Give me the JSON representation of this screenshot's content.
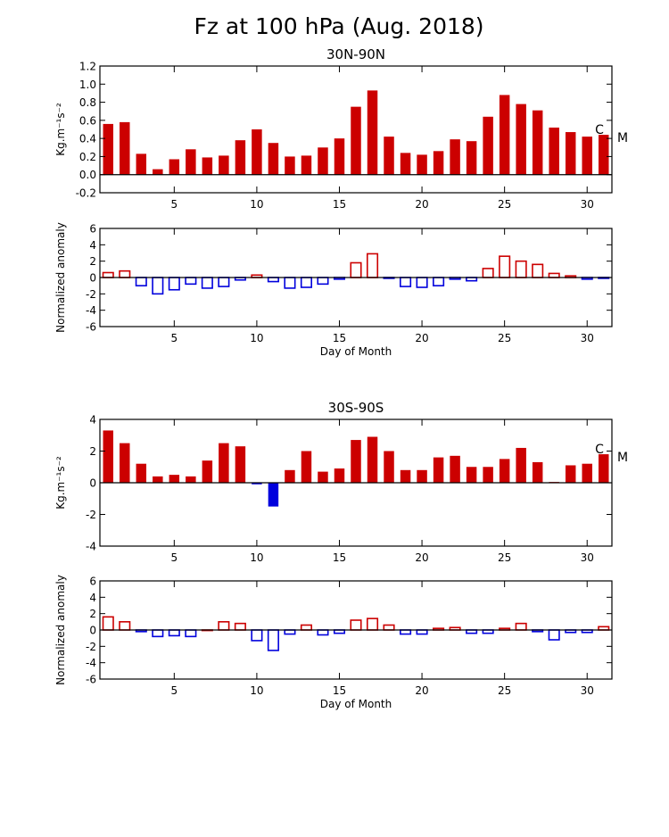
{
  "title": "Fz at 100 hPa (Aug. 2018)",
  "colors": {
    "positive": "#cc0000",
    "negative": "#0000dd",
    "axis": "#000000"
  },
  "chart_data": [
    {
      "type": "bar",
      "title": "30N-90N",
      "ylabel": "Kg.m⁻¹s⁻²",
      "xlabel": "",
      "ylim": [
        -0.2,
        1.2
      ],
      "yticks": [
        "-0.2",
        "0.0",
        "0.2",
        "0.4",
        "0.6",
        "0.8",
        "1.0",
        "1.2"
      ],
      "xticks": [
        "5",
        "10",
        "15",
        "20",
        "25",
        "30"
      ],
      "categories": [
        1,
        2,
        3,
        4,
        5,
        6,
        7,
        8,
        9,
        10,
        11,
        12,
        13,
        14,
        15,
        16,
        17,
        18,
        19,
        20,
        21,
        22,
        23,
        24,
        25,
        26,
        27,
        28,
        29,
        30,
        31
      ],
      "values": [
        0.56,
        0.58,
        0.23,
        0.06,
        0.17,
        0.28,
        0.19,
        0.21,
        0.38,
        0.5,
        0.35,
        0.2,
        0.21,
        0.3,
        0.4,
        0.75,
        0.93,
        0.42,
        0.24,
        0.22,
        0.26,
        0.39,
        0.37,
        0.64,
        0.88,
        0.78,
        0.71,
        0.52,
        0.47,
        0.42,
        0.44
      ],
      "fill": "solid",
      "annotations": [
        "C",
        "M"
      ]
    },
    {
      "type": "bar",
      "title": "",
      "ylabel": "Normalized anomaly",
      "xlabel": "Day of Month",
      "ylim": [
        -6,
        6
      ],
      "yticks": [
        "-6",
        "-4",
        "-2",
        "0",
        "2",
        "4",
        "6"
      ],
      "xticks": [
        "5",
        "10",
        "15",
        "20",
        "25",
        "30"
      ],
      "categories": [
        1,
        2,
        3,
        4,
        5,
        6,
        7,
        8,
        9,
        10,
        11,
        12,
        13,
        14,
        15,
        16,
        17,
        18,
        19,
        20,
        21,
        22,
        23,
        24,
        25,
        26,
        27,
        28,
        29,
        30,
        31
      ],
      "values": [
        0.6,
        0.8,
        -1.0,
        -2.0,
        -1.5,
        -0.8,
        -1.3,
        -1.1,
        -0.3,
        0.3,
        -0.5,
        -1.3,
        -1.2,
        -0.8,
        -0.2,
        1.8,
        2.9,
        -0.1,
        -1.1,
        -1.2,
        -1.0,
        -0.2,
        -0.4,
        1.1,
        2.6,
        2.0,
        1.6,
        0.5,
        0.2,
        -0.2,
        -0.1
      ],
      "fill": "outline"
    },
    {
      "type": "bar",
      "title": "30S-90S",
      "ylabel": "Kg.m⁻¹s⁻²",
      "xlabel": "",
      "ylim": [
        -4,
        4
      ],
      "yticks": [
        "-4",
        "-2",
        "0",
        "2",
        "4"
      ],
      "xticks": [
        "5",
        "10",
        "15",
        "20",
        "25",
        "30"
      ],
      "categories": [
        1,
        2,
        3,
        4,
        5,
        6,
        7,
        8,
        9,
        10,
        11,
        12,
        13,
        14,
        15,
        16,
        17,
        18,
        19,
        20,
        21,
        22,
        23,
        24,
        25,
        26,
        27,
        28,
        29,
        30,
        31
      ],
      "values": [
        3.3,
        2.5,
        1.2,
        0.4,
        0.5,
        0.4,
        1.4,
        2.5,
        2.3,
        -0.1,
        -1.5,
        0.8,
        2.0,
        0.7,
        0.9,
        2.7,
        2.9,
        2.0,
        0.8,
        0.8,
        1.6,
        1.7,
        1.0,
        1.0,
        1.5,
        2.2,
        1.3,
        0.05,
        1.1,
        1.2,
        1.8
      ],
      "fill": "solid",
      "annotations": [
        "C",
        "M"
      ]
    },
    {
      "type": "bar",
      "title": "",
      "ylabel": "Normalized anomaly",
      "xlabel": "Day of Month",
      "ylim": [
        -6,
        6
      ],
      "yticks": [
        "-6",
        "-4",
        "-2",
        "0",
        "2",
        "4",
        "6"
      ],
      "xticks": [
        "5",
        "10",
        "15",
        "20",
        "25",
        "30"
      ],
      "categories": [
        1,
        2,
        3,
        4,
        5,
        6,
        7,
        8,
        9,
        10,
        11,
        12,
        13,
        14,
        15,
        16,
        17,
        18,
        19,
        20,
        21,
        22,
        23,
        24,
        25,
        26,
        27,
        28,
        29,
        30,
        31
      ],
      "values": [
        1.6,
        1.0,
        -0.2,
        -0.8,
        -0.7,
        -0.8,
        0.0,
        1.0,
        0.8,
        -1.3,
        -2.5,
        -0.5,
        0.6,
        -0.6,
        -0.4,
        1.2,
        1.4,
        0.6,
        -0.5,
        -0.5,
        0.2,
        0.3,
        -0.4,
        -0.4,
        0.2,
        0.8,
        -0.2,
        -1.2,
        -0.3,
        -0.3,
        0.4
      ],
      "fill": "outline"
    }
  ]
}
